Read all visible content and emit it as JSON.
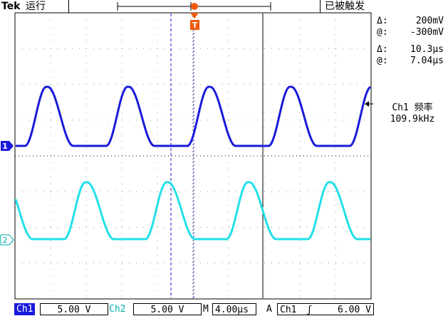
{
  "header": {
    "brand": "Tek",
    "run_state": "运行",
    "trigger_status": "已被触发"
  },
  "readouts": {
    "voltage_delta_symbol": "Δ:",
    "voltage_delta": "200mV",
    "voltage_at_symbol": "@:",
    "voltage_at": "-300mV",
    "time_delta_symbol": "Δ:",
    "time_delta": "10.3μs",
    "time_at_symbol": "@:",
    "time_at": "7.04μs",
    "freq_label": "Ch1 频率",
    "freq_value": "109.9kHz"
  },
  "markers": {
    "ch1": "1",
    "ch2": "2",
    "trigger": "T"
  },
  "footer": {
    "ch1_label": "Ch1",
    "ch1_scale": "5.00 V",
    "ch2_label": "Ch2",
    "ch2_scale": "5.00 V",
    "timebase_prefix": "M",
    "timebase": "4.00μs",
    "trigger_mode": "A",
    "trigger_source": "Ch1",
    "trigger_slope": "ʃ",
    "trigger_level": "6.00 V"
  },
  "colors": {
    "ch1": "#1a1adb",
    "ch2": "#22e0e8",
    "trigger": "#f05a0a",
    "cursor": "#1a1adb"
  }
}
